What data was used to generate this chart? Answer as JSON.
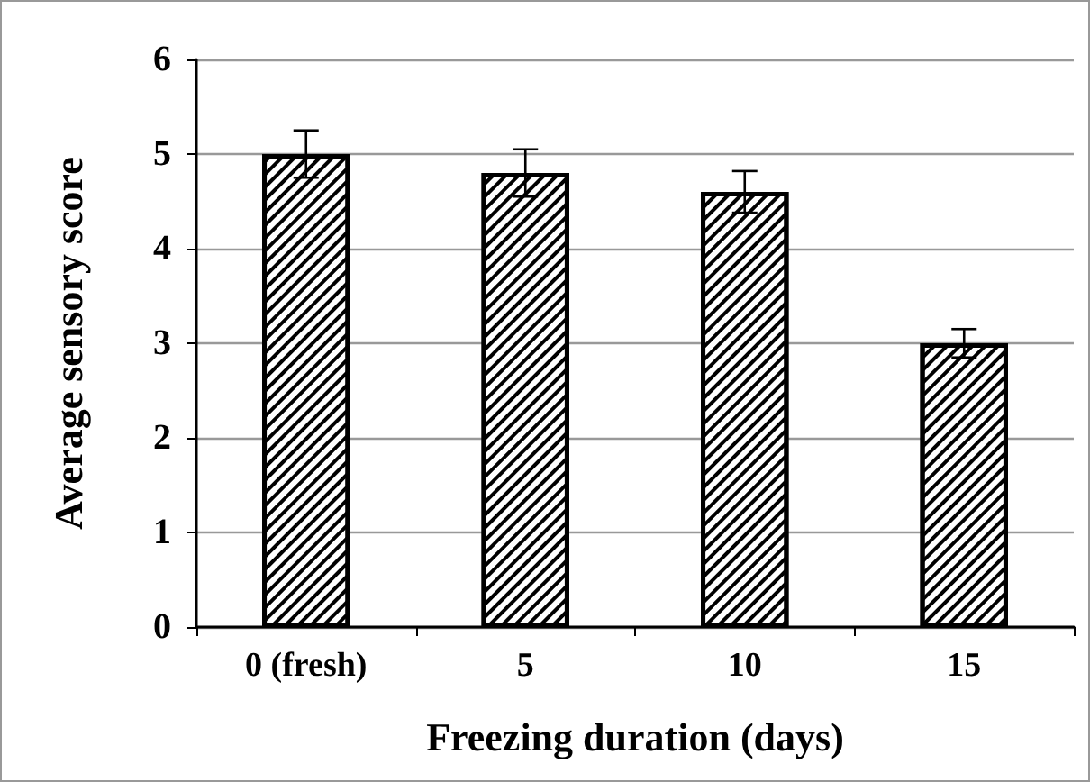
{
  "chart_data": {
    "type": "bar",
    "xlabel": "Freezing duration (days)",
    "ylabel": "Average sensory score",
    "categories": [
      "0 (fresh)",
      "5",
      "10",
      "15"
    ],
    "values": [
      5.0,
      4.8,
      4.6,
      3.0
    ],
    "errors": [
      0.25,
      0.25,
      0.22,
      0.15
    ],
    "color": "#000000",
    "ylim": [
      0,
      6
    ],
    "yticks": [
      0,
      1,
      2,
      3,
      4,
      5,
      6
    ],
    "grid": "y"
  }
}
